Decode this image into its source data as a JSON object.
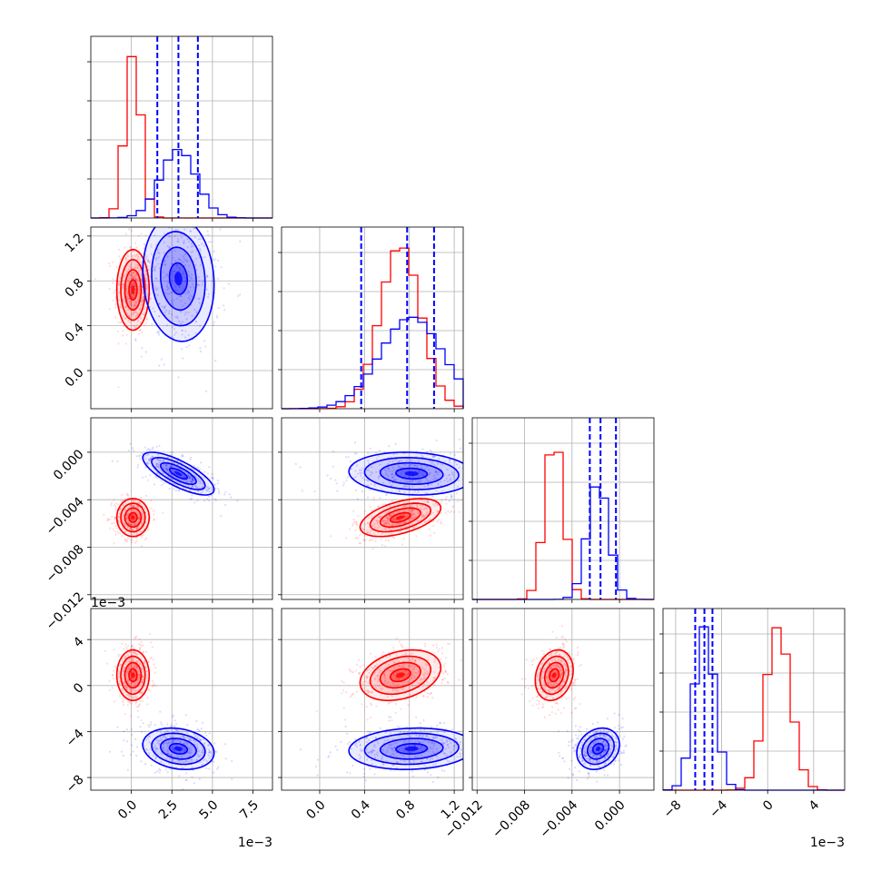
{
  "chart_data": {
    "type": "corner",
    "colors": {
      "series_a": "#ff0000",
      "series_b": "#0000ff",
      "grid": "#b0b0b0"
    },
    "parameters": [
      {
        "range": [
          -0.0025,
          0.0087
        ],
        "ticks": [
          0.0,
          0.0025,
          0.005,
          0.0075
        ],
        "tick_labels": [
          "0.0",
          "2.5",
          "5.0",
          "7.5"
        ],
        "offset_label": "1e−3"
      },
      {
        "range": [
          -0.34,
          1.28
        ],
        "ticks": [
          0.0,
          0.4,
          0.8,
          1.2
        ],
        "tick_labels": [
          "0.0",
          "0.4",
          "0.8",
          "1.2"
        ],
        "offset_label": ""
      },
      {
        "range": [
          -0.0124,
          0.0029
        ],
        "ticks": [
          -0.012,
          -0.008,
          -0.004,
          0.0
        ],
        "tick_labels": [
          "−0.012",
          "−0.008",
          "−0.004",
          "0.000"
        ],
        "offset_label": ""
      },
      {
        "range": [
          -0.0091,
          0.0067
        ],
        "ticks": [
          -0.008,
          -0.004,
          0.0,
          0.004
        ],
        "tick_labels": [
          "−8",
          "−4",
          "0",
          "4"
        ],
        "offset_label": "1e−3"
      }
    ],
    "y_offset_labels": {
      "row_3": "1e−3"
    },
    "series": [
      {
        "name": "",
        "color": "#ff0000",
        "mean": [
          0.0001,
          0.72,
          -0.0055,
          0.0009
        ],
        "std": [
          0.0005,
          0.18,
          0.0008,
          0.0011
        ],
        "corr": [
          [
            1,
            0,
            0,
            0
          ],
          [
            0,
            1,
            0.5,
            0.3
          ],
          [
            0,
            0.5,
            1,
            0.2
          ],
          [
            0,
            0.3,
            0.2,
            1
          ]
        ],
        "hist_peaks": [
          1.0,
          1.0,
          1.0,
          1.0
        ]
      },
      {
        "name": "",
        "color": "#0000ff",
        "mean": [
          0.0029,
          0.82,
          -0.0018,
          -0.0055
        ],
        "std": [
          0.0011,
          0.28,
          0.0009,
          0.0009
        ],
        "corr": [
          [
            1,
            -0.1,
            -0.75,
            -0.2
          ],
          [
            -0.1,
            1,
            -0.1,
            0.1
          ],
          [
            -0.75,
            -0.1,
            1,
            0.2
          ],
          [
            -0.2,
            0.1,
            0.2,
            1
          ]
        ],
        "hist_peaks": [
          0.42,
          0.56,
          0.72,
          1.0
        ],
        "quantiles_16_50_84": [
          [
            0.0016,
            0.0029,
            0.0041
          ],
          [
            0.37,
            0.78,
            1.02
          ],
          [
            -0.0025,
            -0.0016,
            -0.0003
          ],
          [
            -0.0063,
            -0.0055,
            -0.0048
          ]
        ]
      }
    ],
    "grid": true
  }
}
